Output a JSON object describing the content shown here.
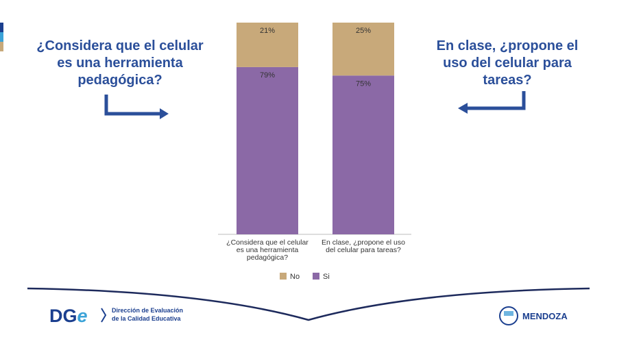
{
  "left_question": [
    "¿Considera que el celular",
    "es una herramienta",
    "pedagógica?"
  ],
  "right_question": [
    "En clase, ¿propone el",
    "uso del celular para",
    "tareas?"
  ],
  "chart_data": {
    "type": "stacked-bar",
    "categories": [
      "¿Considera que el celular es una herramienta pedagógica?",
      "En clase, ¿propone el uso del celular para tareas?"
    ],
    "series": [
      {
        "name": "No",
        "color": "#c8a97a",
        "values": [
          21,
          25
        ],
        "value_labels": [
          "21%",
          "25%"
        ]
      },
      {
        "name": "Si",
        "color": "#8b69a6",
        "values": [
          79,
          75
        ],
        "value_labels": [
          "79%",
          "75%"
        ]
      }
    ],
    "legend": "bottom"
  },
  "footer": {
    "logo": "DG",
    "logo_accent": "e",
    "org": [
      "Dirección de Evaluación",
      "de la Calidad Educativa"
    ],
    "province": "MENDOZA"
  }
}
